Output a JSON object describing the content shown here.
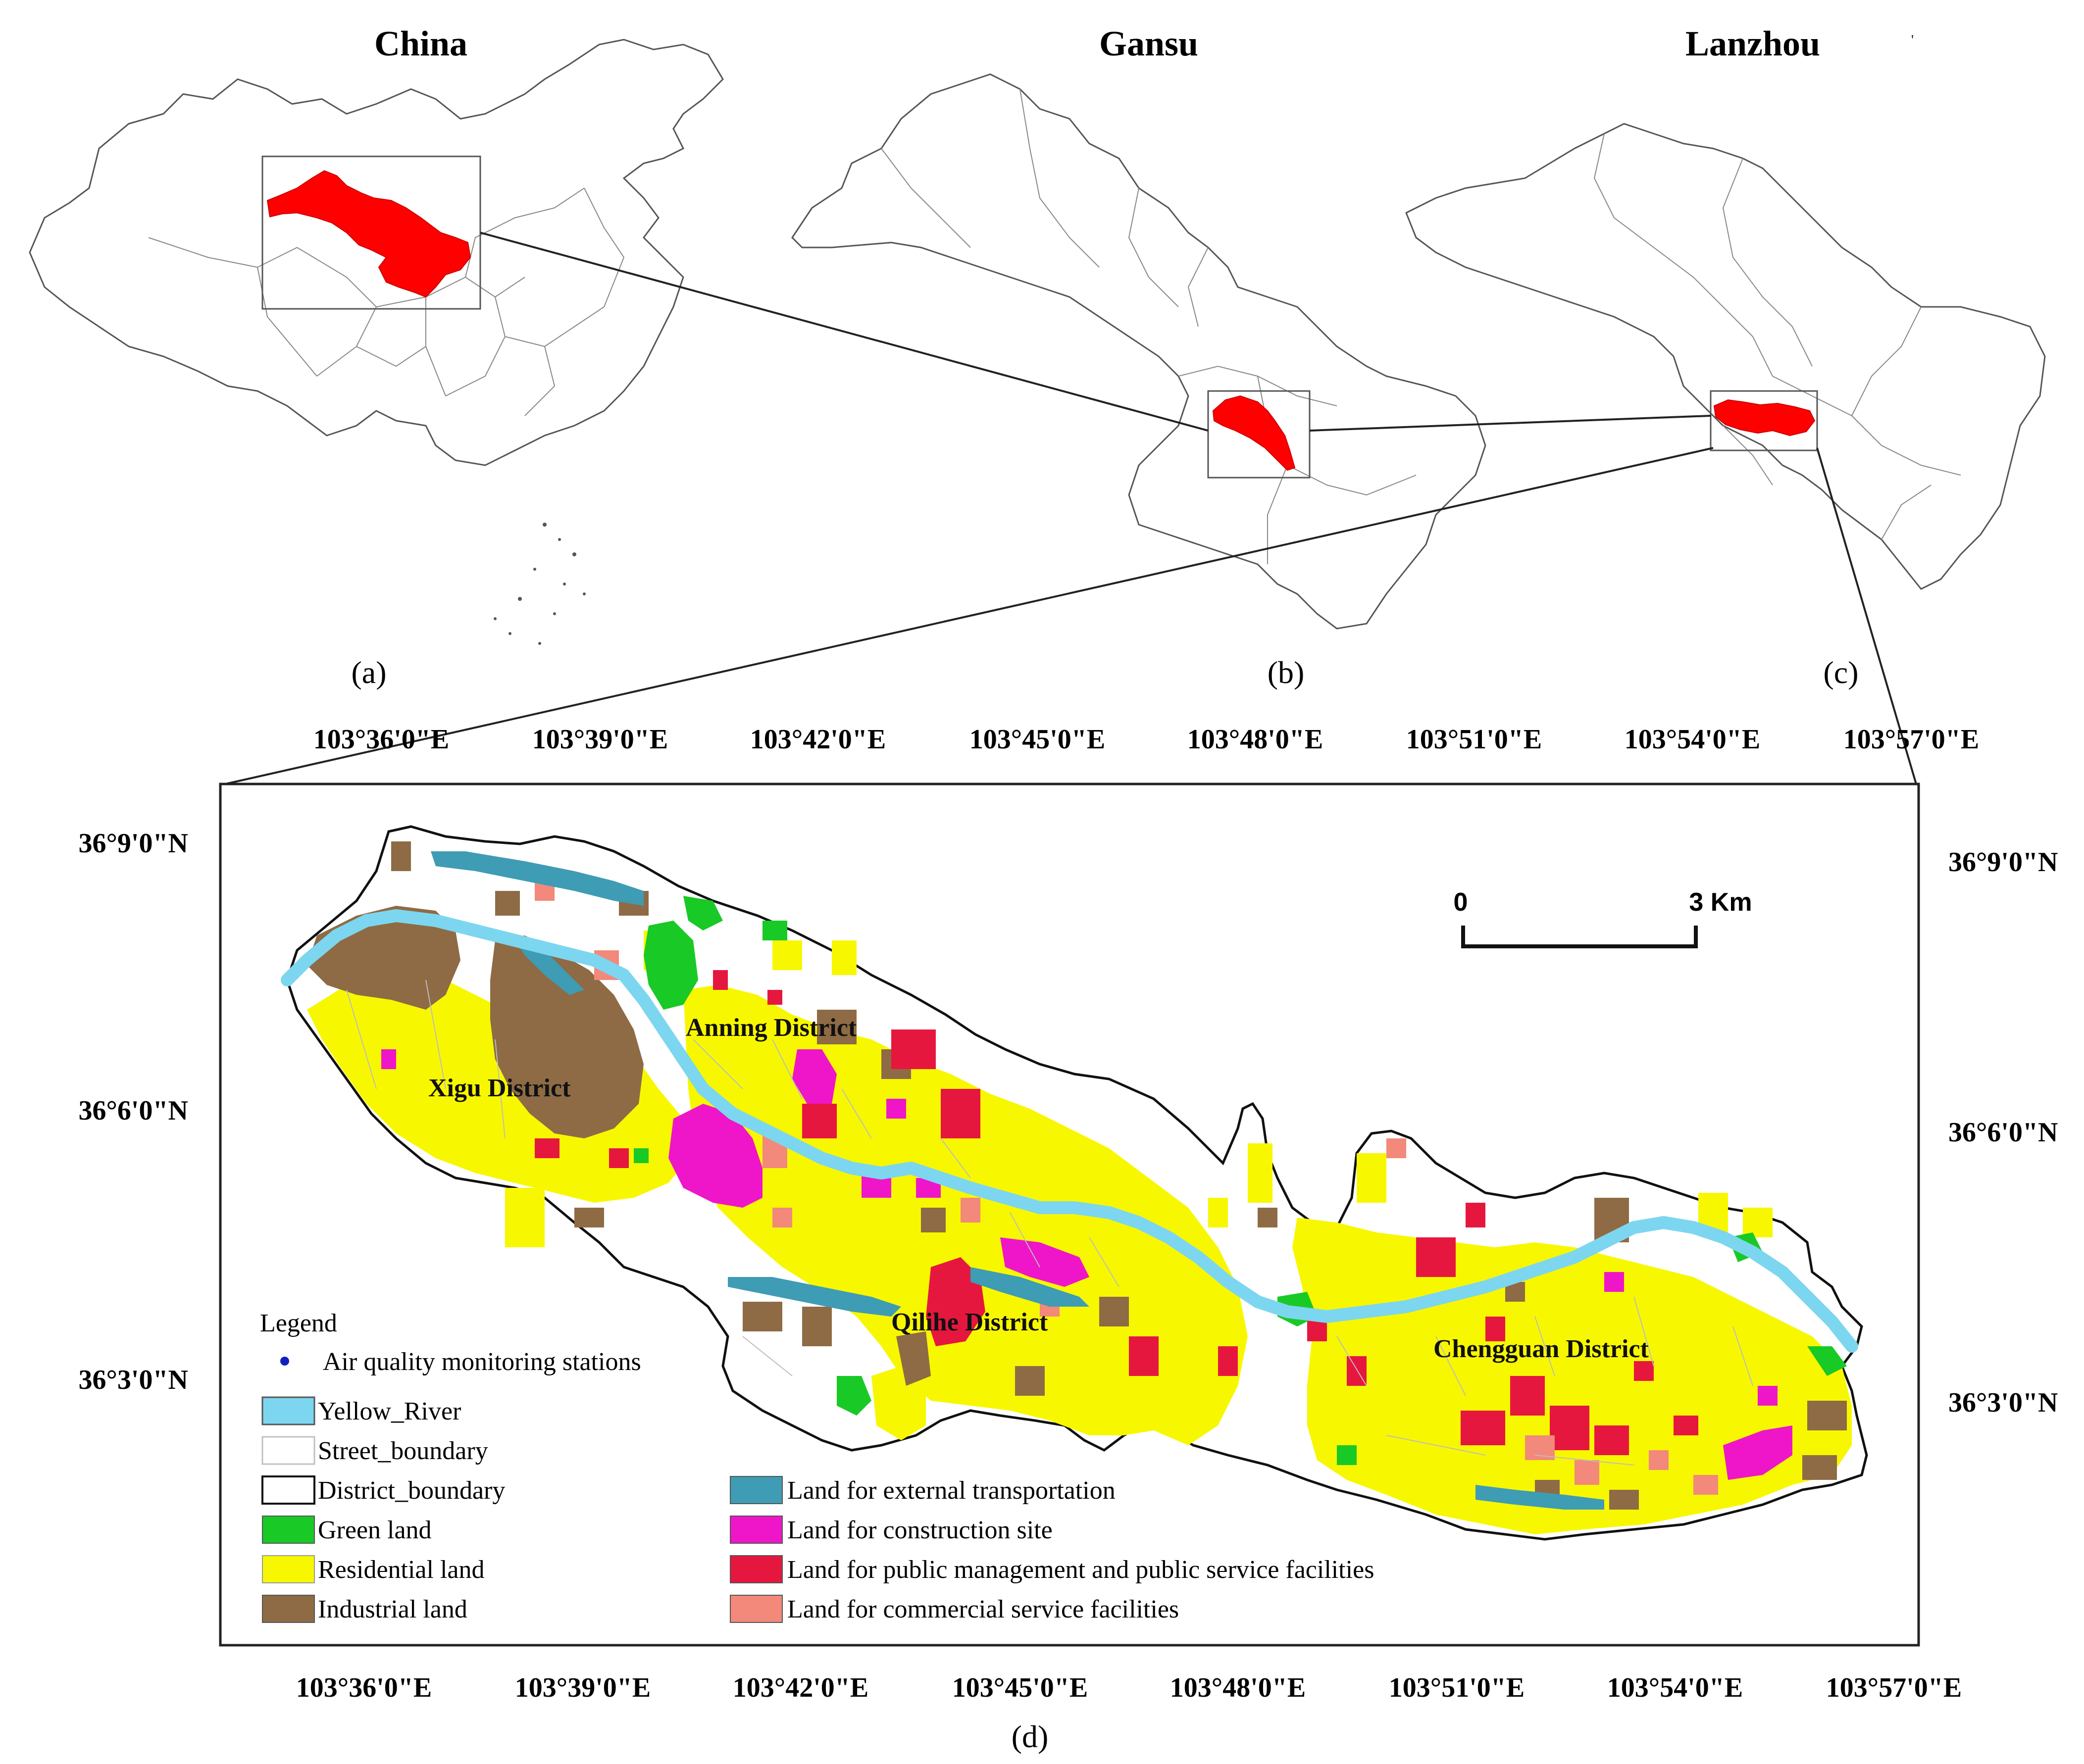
{
  "top_panels": {
    "a": {
      "title": "China",
      "label": "(a)"
    },
    "b": {
      "title": "Gansu",
      "label": "(b)"
    },
    "c": {
      "title": "Lanzhou",
      "label": "(c)"
    }
  },
  "main_map": {
    "label": "(d)",
    "lon_ticks": [
      "103°36'0\"E",
      "103°39'0\"E",
      "103°42'0\"E",
      "103°45'0\"E",
      "103°48'0\"E",
      "103°51'0\"E",
      "103°54'0\"E",
      "103°57'0\"E"
    ],
    "lat_ticks_left": [
      "36°9'0\"N",
      "36°6'0\"N",
      "36°3'0\"N"
    ],
    "lat_ticks_right": [
      "36°9'0\"N",
      "36°6'0\"N",
      "36°3'0\"N"
    ],
    "scale_bar": {
      "start": "0",
      "end": "3 Km"
    },
    "districts": [
      "Xigu District",
      "Anning District",
      "Qilihe District",
      "Chengguan District"
    ]
  },
  "legend": {
    "title": "Legend",
    "items": [
      {
        "label": "Air quality monitoring stations",
        "kind": "dot",
        "color": "#1020c0"
      },
      {
        "label": "Yellow_River",
        "kind": "patch",
        "color": "#7dd6ef"
      },
      {
        "label": "Street_boundary",
        "kind": "patch",
        "color": "#ffffff"
      },
      {
        "label": "District_boundary",
        "kind": "patch",
        "color": "#ffffff"
      },
      {
        "label": "Green land",
        "kind": "patch",
        "color": "#19c926"
      },
      {
        "label": "Residential land",
        "kind": "patch",
        "color": "#f7f700"
      },
      {
        "label": "Industrial land",
        "kind": "patch",
        "color": "#8e6b45"
      },
      {
        "label": "Land for external transportation",
        "kind": "patch",
        "color": "#3e9cb4"
      },
      {
        "label": "Land for construction site",
        "kind": "patch",
        "color": "#ee16c8"
      },
      {
        "label": "Land for public management and public service facilities",
        "kind": "patch",
        "color": "#e6173f"
      },
      {
        "label": "Land for commercial service facilities",
        "kind": "patch",
        "color": "#f2897a"
      }
    ]
  },
  "colors": {
    "highlight": "#ff0000",
    "river": "#7dd6ef",
    "green": "#19c926",
    "residential": "#f7f700",
    "industrial": "#8e6b45",
    "transport": "#3e9cb4",
    "construction": "#ee16c8",
    "public": "#e6173f",
    "commercial": "#f2897a"
  }
}
